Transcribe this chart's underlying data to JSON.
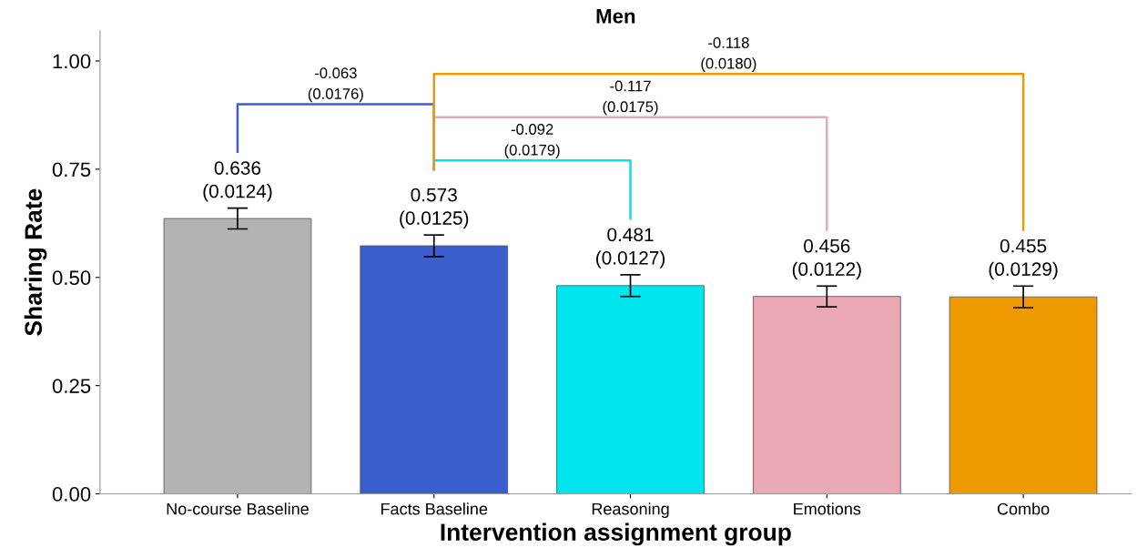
{
  "chart_data": {
    "type": "bar",
    "title": "Men",
    "xlabel": "Intervention assignment group",
    "ylabel": "Sharing Rate",
    "categories": [
      "No-course Baseline",
      "Facts Baseline",
      "Reasoning",
      "Emotions",
      "Combo"
    ],
    "values": [
      0.636,
      0.573,
      0.481,
      0.456,
      0.455
    ],
    "colors": [
      "#b3b3b3",
      "#3a5fcd",
      "#00e5ee",
      "#eaa8b4",
      "#ee9a00"
    ],
    "errors": [
      0.024,
      0.025,
      0.025,
      0.024,
      0.025
    ],
    "value_labels": [
      "0.636\n(0.0124)",
      "0.573\n(0.0125)",
      "0.481\n(0.0127)",
      "0.456\n(0.0122)",
      "0.455\n(0.0129)"
    ],
    "annotations": [
      "-0.063\n(0.0176)",
      "-0.092\n(0.0179)",
      "-0.117\n(0.0175)",
      "-0.118\n(0.0180)"
    ],
    "ylim": [
      0,
      1.07
    ],
    "yticks": [
      {
        "value": 0,
        "label": "0.00"
      },
      {
        "value": 0.25,
        "label": "0.25"
      },
      {
        "value": 0.5,
        "label": "0.50"
      },
      {
        "value": 0.75,
        "label": "0.75"
      },
      {
        "value": 1.0,
        "label": "1.00"
      }
    ],
    "grid": false,
    "legend": false
  }
}
